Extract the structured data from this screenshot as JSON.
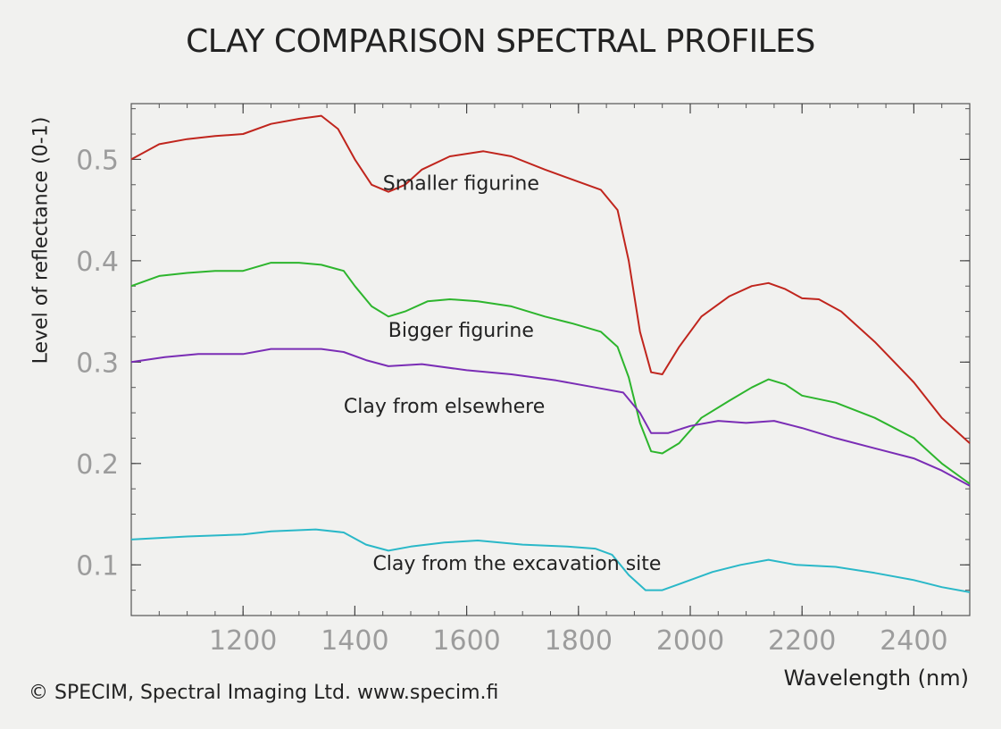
{
  "chart_data": {
    "type": "line",
    "title": "CLAY COMPARISON SPECTRAL PROFILES",
    "xlabel": "Wavelength (nm)",
    "ylabel": "Level of reflectance (0-1)",
    "xlim": [
      1000,
      2500
    ],
    "ylim": [
      0.05,
      0.555
    ],
    "x_ticks": [
      1200,
      1400,
      1600,
      1800,
      2000,
      2200,
      2400
    ],
    "x_tick_labels": [
      "1200",
      "1400",
      "1600",
      "1800",
      "2000",
      "2200",
      "2400"
    ],
    "y_ticks": [
      0.1,
      0.2,
      0.3,
      0.4,
      0.5
    ],
    "y_tick_labels": [
      "0.1",
      "0.2",
      "0.3",
      "0.4",
      "0.5"
    ],
    "grid": false,
    "legend": "none",
    "series": [
      {
        "name": "Smaller figurine",
        "color": "#c0251d",
        "label_at": [
          1590,
          0.47
        ],
        "points": [
          [
            1000,
            0.5
          ],
          [
            1050,
            0.515
          ],
          [
            1100,
            0.52
          ],
          [
            1150,
            0.523
          ],
          [
            1200,
            0.525
          ],
          [
            1250,
            0.535
          ],
          [
            1300,
            0.54
          ],
          [
            1340,
            0.543
          ],
          [
            1370,
            0.53
          ],
          [
            1400,
            0.5
          ],
          [
            1430,
            0.475
          ],
          [
            1460,
            0.468
          ],
          [
            1490,
            0.475
          ],
          [
            1520,
            0.49
          ],
          [
            1570,
            0.503
          ],
          [
            1630,
            0.508
          ],
          [
            1680,
            0.503
          ],
          [
            1740,
            0.49
          ],
          [
            1800,
            0.478
          ],
          [
            1840,
            0.47
          ],
          [
            1870,
            0.45
          ],
          [
            1890,
            0.4
          ],
          [
            1910,
            0.33
          ],
          [
            1930,
            0.29
          ],
          [
            1950,
            0.288
          ],
          [
            1980,
            0.315
          ],
          [
            2020,
            0.345
          ],
          [
            2070,
            0.365
          ],
          [
            2110,
            0.375
          ],
          [
            2140,
            0.378
          ],
          [
            2170,
            0.372
          ],
          [
            2200,
            0.363
          ],
          [
            2230,
            0.362
          ],
          [
            2270,
            0.35
          ],
          [
            2330,
            0.32
          ],
          [
            2400,
            0.28
          ],
          [
            2450,
            0.245
          ],
          [
            2500,
            0.22
          ]
        ]
      },
      {
        "name": "Bigger figurine",
        "color": "#2db52d",
        "label_at": [
          1590,
          0.325
        ],
        "points": [
          [
            1000,
            0.375
          ],
          [
            1050,
            0.385
          ],
          [
            1100,
            0.388
          ],
          [
            1150,
            0.39
          ],
          [
            1200,
            0.39
          ],
          [
            1250,
            0.398
          ],
          [
            1300,
            0.398
          ],
          [
            1340,
            0.396
          ],
          [
            1380,
            0.39
          ],
          [
            1400,
            0.375
          ],
          [
            1430,
            0.355
          ],
          [
            1460,
            0.345
          ],
          [
            1490,
            0.35
          ],
          [
            1530,
            0.36
          ],
          [
            1570,
            0.362
          ],
          [
            1620,
            0.36
          ],
          [
            1680,
            0.355
          ],
          [
            1740,
            0.345
          ],
          [
            1790,
            0.338
          ],
          [
            1840,
            0.33
          ],
          [
            1870,
            0.315
          ],
          [
            1890,
            0.285
          ],
          [
            1910,
            0.24
          ],
          [
            1930,
            0.212
          ],
          [
            1950,
            0.21
          ],
          [
            1980,
            0.22
          ],
          [
            2020,
            0.245
          ],
          [
            2070,
            0.262
          ],
          [
            2110,
            0.275
          ],
          [
            2140,
            0.283
          ],
          [
            2170,
            0.278
          ],
          [
            2200,
            0.267
          ],
          [
            2260,
            0.26
          ],
          [
            2330,
            0.245
          ],
          [
            2400,
            0.225
          ],
          [
            2450,
            0.2
          ],
          [
            2500,
            0.18
          ]
        ]
      },
      {
        "name": "Clay from elsewhere",
        "color": "#7a2db5",
        "label_at": [
          1560,
          0.25
        ],
        "points": [
          [
            1000,
            0.3
          ],
          [
            1060,
            0.305
          ],
          [
            1120,
            0.308
          ],
          [
            1200,
            0.308
          ],
          [
            1250,
            0.313
          ],
          [
            1340,
            0.313
          ],
          [
            1380,
            0.31
          ],
          [
            1420,
            0.302
          ],
          [
            1460,
            0.296
          ],
          [
            1520,
            0.298
          ],
          [
            1600,
            0.292
          ],
          [
            1680,
            0.288
          ],
          [
            1760,
            0.282
          ],
          [
            1830,
            0.275
          ],
          [
            1880,
            0.27
          ],
          [
            1910,
            0.25
          ],
          [
            1930,
            0.23
          ],
          [
            1960,
            0.23
          ],
          [
            2000,
            0.237
          ],
          [
            2050,
            0.242
          ],
          [
            2100,
            0.24
          ],
          [
            2150,
            0.242
          ],
          [
            2200,
            0.235
          ],
          [
            2260,
            0.225
          ],
          [
            2330,
            0.215
          ],
          [
            2400,
            0.205
          ],
          [
            2450,
            0.193
          ],
          [
            2500,
            0.178
          ]
        ]
      },
      {
        "name": "Clay from the excavation site",
        "color": "#2ab8c8",
        "label_at": [
          1690,
          0.095
        ],
        "points": [
          [
            1000,
            0.125
          ],
          [
            1100,
            0.128
          ],
          [
            1200,
            0.13
          ],
          [
            1250,
            0.133
          ],
          [
            1330,
            0.135
          ],
          [
            1380,
            0.132
          ],
          [
            1420,
            0.12
          ],
          [
            1460,
            0.114
          ],
          [
            1500,
            0.118
          ],
          [
            1560,
            0.122
          ],
          [
            1620,
            0.124
          ],
          [
            1700,
            0.12
          ],
          [
            1780,
            0.118
          ],
          [
            1830,
            0.116
          ],
          [
            1860,
            0.11
          ],
          [
            1890,
            0.09
          ],
          [
            1920,
            0.075
          ],
          [
            1950,
            0.075
          ],
          [
            1990,
            0.083
          ],
          [
            2040,
            0.093
          ],
          [
            2090,
            0.1
          ],
          [
            2140,
            0.105
          ],
          [
            2190,
            0.1
          ],
          [
            2260,
            0.098
          ],
          [
            2330,
            0.092
          ],
          [
            2400,
            0.085
          ],
          [
            2450,
            0.078
          ],
          [
            2500,
            0.073
          ]
        ]
      }
    ]
  },
  "credit": "© SPECIM, Spectral Imaging Ltd. www.specim.fi"
}
